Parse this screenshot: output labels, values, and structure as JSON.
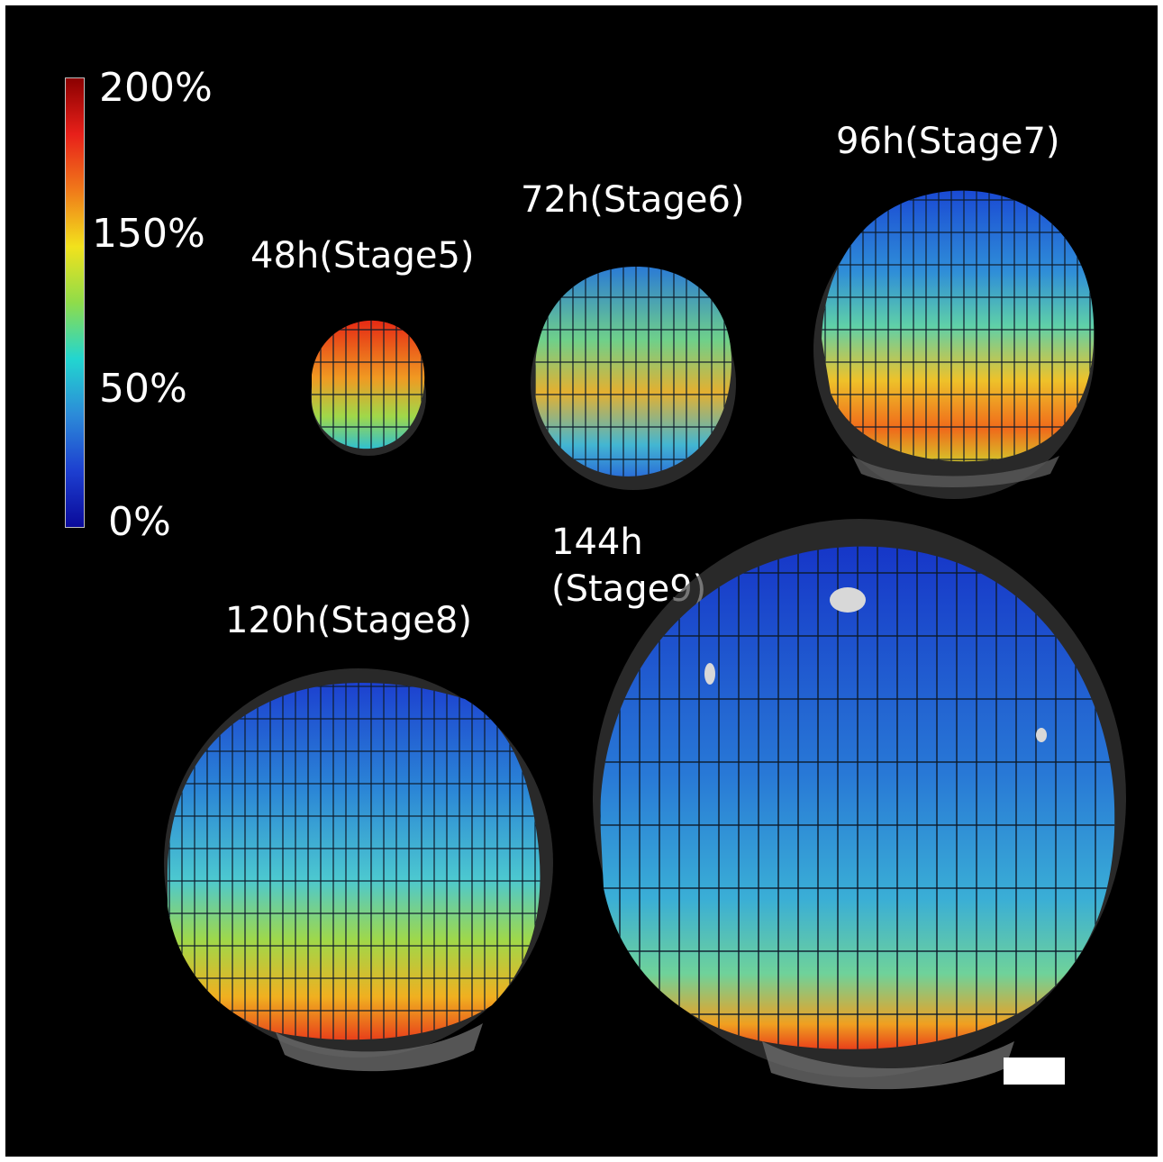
{
  "colorbar": {
    "ticks": [
      "200%",
      "150%",
      "50%",
      "0%"
    ],
    "colors": [
      "#8b0000",
      "#e8201a",
      "#f07a1a",
      "#f2e21c",
      "#8fdc4a",
      "#22d6d0",
      "#2c8bd8",
      "#1d3fd0",
      "#0a0a9a"
    ]
  },
  "stages": [
    {
      "label": "48h(Stage5)"
    },
    {
      "label": "72h(Stage6)"
    },
    {
      "label": "96h(Stage7)"
    },
    {
      "label": "120h(Stage8)"
    },
    {
      "label": "144h\n(Stage9)"
    }
  ],
  "scale_bar": "scale-bar"
}
